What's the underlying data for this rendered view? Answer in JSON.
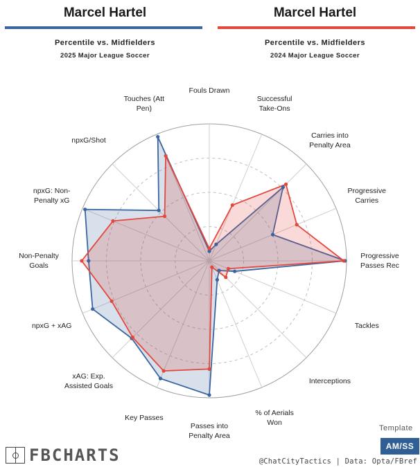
{
  "header": {
    "left": {
      "player": "Marcel Hartel",
      "subtitle": "Percentile vs. Midfielders",
      "season": "2025 Major League Soccer",
      "color": "#3a65a0"
    },
    "right": {
      "player": "Marcel Hartel",
      "subtitle": "Percentile vs. Midfielders",
      "season": "2024 Major League Soccer",
      "color": "#e2483d"
    }
  },
  "chart_data": {
    "type": "radar",
    "range": [
      0,
      100
    ],
    "grid": true,
    "categories": [
      "Fouls Drawn",
      "Successful\nTake-Ons",
      "Carries into\nPenalty Area",
      "Progressive\nCarries",
      "Progressive\nPasses Rec",
      "Tackles",
      "Interceptions",
      "% of Aerials\nWon",
      "Passes into\nPenalty Area",
      "Key Passes",
      "xAG: Exp.\nAssisted Goals",
      "npxG + xAG",
      "Non-Penalty\nGoals",
      "npxG: Non-\nPenalty xG",
      "npxG/Shot",
      "Touches (Att\nPen)"
    ],
    "series": [
      {
        "name": "2025 Major League Soccer",
        "color": "#3a65a0",
        "values": [
          7,
          13,
          76,
          50,
          99,
          20,
          10,
          15,
          98,
          93,
          80,
          92,
          88,
          98,
          52,
          98
        ]
      },
      {
        "name": "2024 Major League Soccer",
        "color": "#e2483d",
        "values": [
          9,
          44,
          79,
          69,
          98,
          15,
          17,
          5,
          79,
          87,
          79,
          77,
          93,
          76,
          46,
          83
        ]
      }
    ]
  },
  "footer": {
    "logo_text": "FBCHARTS",
    "template_label": "Template",
    "template_code": "AM/SS",
    "credit": "@ChatCityTactics | Data: Opta/FBref"
  }
}
